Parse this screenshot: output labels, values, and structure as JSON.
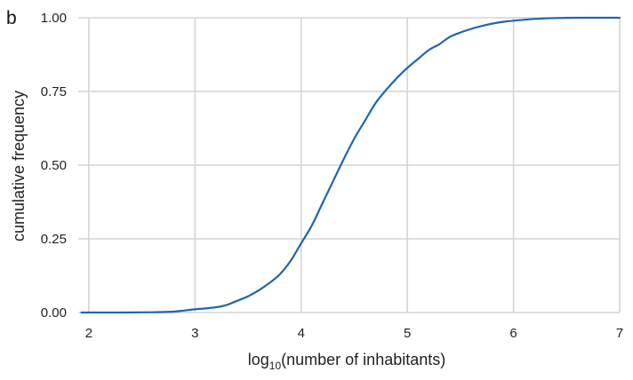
{
  "panel_label": "b",
  "chart_data": {
    "type": "line",
    "xlabel_main": "log",
    "xlabel_sub": "10",
    "xlabel_rest": "(number of inhabitants)",
    "ylabel": "cumulative frequency",
    "xlim": [
      1.9,
      7.0
    ],
    "ylim": [
      0,
      1.0
    ],
    "x_ticks": [
      2,
      3,
      4,
      5,
      6,
      7
    ],
    "y_ticks": [
      0.0,
      0.25,
      0.5,
      0.75,
      1.0
    ],
    "x_tick_labels": [
      "2",
      "3",
      "4",
      "5",
      "6",
      "7"
    ],
    "y_tick_labels": [
      "0.00",
      "0.25",
      "0.50",
      "0.75",
      "1.00"
    ],
    "grid": true,
    "series": [
      {
        "color": "#2166ac",
        "points": [
          [
            1.93,
            0.0
          ],
          [
            2.3,
            0.0
          ],
          [
            2.6,
            0.001
          ],
          [
            2.8,
            0.003
          ],
          [
            2.9,
            0.007
          ],
          [
            3.0,
            0.011
          ],
          [
            3.1,
            0.014
          ],
          [
            3.2,
            0.018
          ],
          [
            3.3,
            0.026
          ],
          [
            3.4,
            0.04
          ],
          [
            3.5,
            0.055
          ],
          [
            3.6,
            0.075
          ],
          [
            3.7,
            0.1
          ],
          [
            3.8,
            0.13
          ],
          [
            3.9,
            0.175
          ],
          [
            4.0,
            0.235
          ],
          [
            4.1,
            0.295
          ],
          [
            4.2,
            0.37
          ],
          [
            4.3,
            0.445
          ],
          [
            4.4,
            0.52
          ],
          [
            4.5,
            0.59
          ],
          [
            4.6,
            0.65
          ],
          [
            4.7,
            0.71
          ],
          [
            4.8,
            0.755
          ],
          [
            4.9,
            0.795
          ],
          [
            5.0,
            0.83
          ],
          [
            5.1,
            0.86
          ],
          [
            5.2,
            0.89
          ],
          [
            5.3,
            0.91
          ],
          [
            5.4,
            0.935
          ],
          [
            5.5,
            0.95
          ],
          [
            5.6,
            0.962
          ],
          [
            5.7,
            0.972
          ],
          [
            5.8,
            0.98
          ],
          [
            5.9,
            0.986
          ],
          [
            6.0,
            0.99
          ],
          [
            6.2,
            0.996
          ],
          [
            6.4,
            0.999
          ],
          [
            6.6,
            1.0
          ],
          [
            7.0,
            1.0
          ]
        ]
      }
    ]
  }
}
